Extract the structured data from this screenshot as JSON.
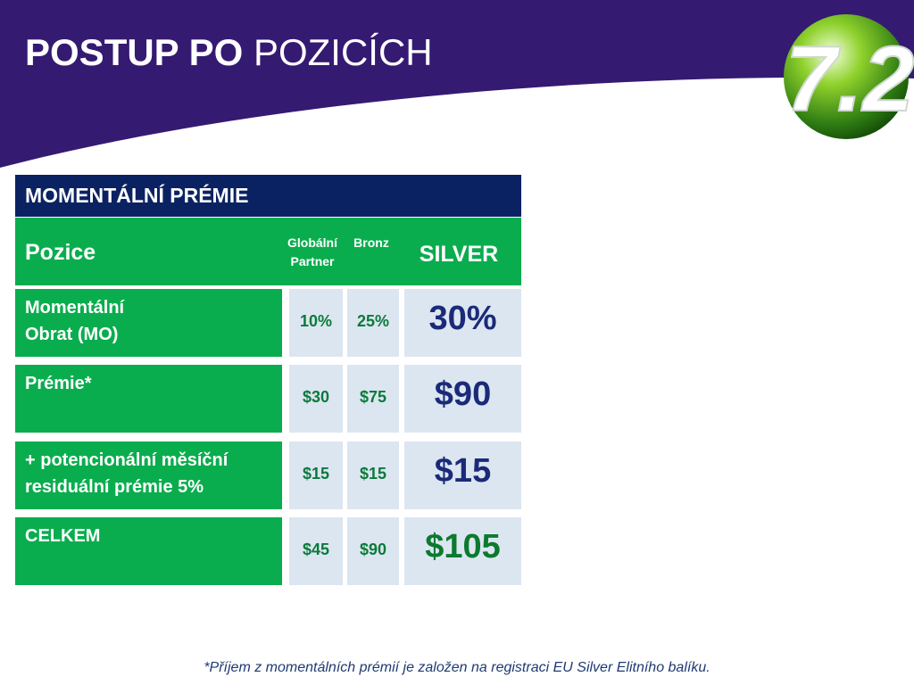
{
  "title": {
    "bold": "POSTUP PO",
    "normal": " POZICÍCH"
  },
  "logo_text": "7.2",
  "colors": {
    "banner": "#351a72",
    "header_navy": "#0b2262",
    "green": "#0aad4e",
    "cell_bg": "#dce6f1",
    "value_dark_green": "#0b7a3a",
    "value_navy": "#1b2a78"
  },
  "table": {
    "header": "MOMENTÁLNÍ PRÉMIE",
    "position_label": "Pozice",
    "columns": {
      "global_partner_line1": "Globální",
      "global_partner_line2": "Partner",
      "bronze": "Bronz",
      "silver": "SILVER"
    },
    "rows": [
      {
        "label_line1": "Momentální",
        "label_line2": "Obrat (MO)",
        "gp": "10%",
        "bronze": "25%",
        "silver": "30%"
      },
      {
        "label_line1": "Prémie*",
        "label_line2": "",
        "gp": "$30",
        "bronze": "$75",
        "silver": "$90"
      },
      {
        "label_line1": "+ potencionální měsíční",
        "label_line2": "residuální prémie 5%",
        "gp": "$15",
        "bronze": "$15",
        "silver": "$15"
      },
      {
        "label_line1": "CELKEM",
        "label_line2": "",
        "gp": "$45",
        "bronze": "$90",
        "silver": "$105"
      }
    ]
  },
  "footnote": "*Příjem z momentálních prémií  je založen na registraci EU Silver Elitního balíku."
}
